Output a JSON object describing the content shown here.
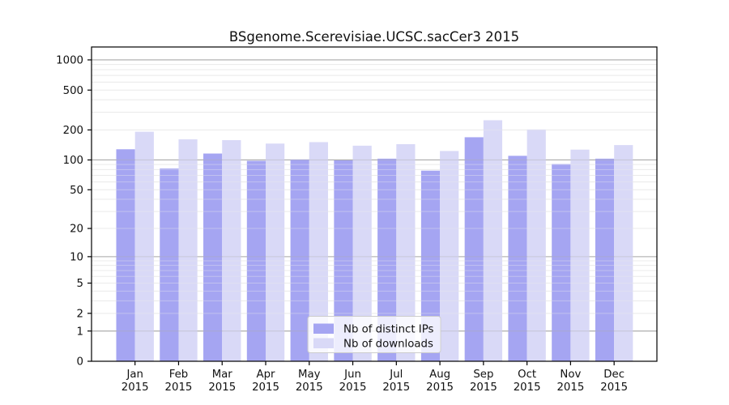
{
  "title": "BSgenome.Scerevisiae.UCSC.sacCer3 2015",
  "legend": {
    "items": [
      {
        "label": "Nb of distinct IPs",
        "color": "#a5a5f2"
      },
      {
        "label": "Nb of downloads",
        "color": "#d9d9f7"
      }
    ]
  },
  "chart_data": {
    "type": "bar",
    "title": "BSgenome.Scerevisiae.UCSC.sacCer3 2015",
    "categories": [
      "Jan 2015",
      "Feb 2015",
      "Mar 2015",
      "Apr 2015",
      "May 2015",
      "Jun 2015",
      "Jul 2015",
      "Aug 2015",
      "Sep 2015",
      "Oct 2015",
      "Nov 2015",
      "Dec 2015"
    ],
    "series": [
      {
        "name": "Nb of distinct IPs",
        "color": "#a5a5f2",
        "values": [
          128,
          82,
          116,
          98,
          101,
          99,
          103,
          78,
          169,
          110,
          91,
          103
        ]
      },
      {
        "name": "Nb of downloads",
        "color": "#d9d9f7",
        "values": [
          192,
          161,
          158,
          146,
          151,
          139,
          144,
          123,
          250,
          202,
          127,
          141
        ]
      }
    ],
    "xlabel": "",
    "ylabel": "",
    "yscale": "log10(1+x)",
    "yticks": [
      0,
      1,
      2,
      5,
      10,
      20,
      50,
      100,
      200,
      500,
      1000
    ],
    "ylim": [
      0,
      1350
    ],
    "grid": true,
    "major_gridlines": [
      1,
      10,
      100,
      1000
    ],
    "legend_position": "inside lower-center",
    "colors": {
      "major_grid": "#ababab",
      "minor_grid": "#ebebeb",
      "axis": "#000000",
      "text": "#111111"
    }
  }
}
